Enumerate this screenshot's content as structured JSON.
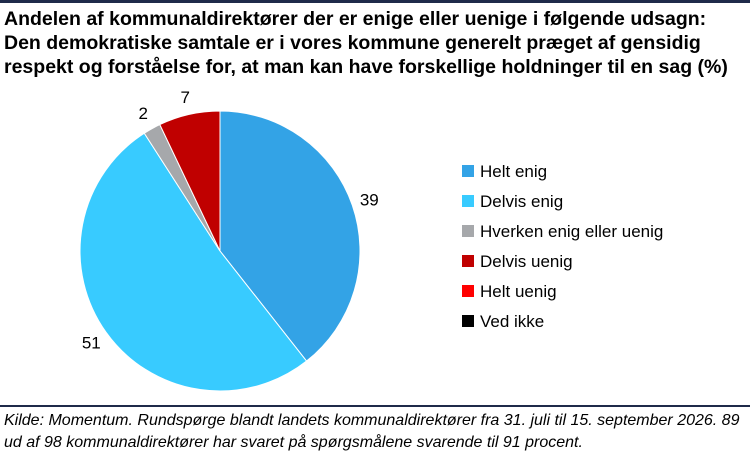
{
  "title": "Andelen af kommunaldirektører der er enige eller uenige i følgende udsagn: Den demokratiske samtale er i vores kommune generelt præget af gensidig respekt og forståelse for, at man kan have forskellige holdninger til en sag (%)",
  "source": "Kilde: Momentum. Rundspørge blandt landets kommunaldirektører fra 31. juli til 15. september 2026. 89 ud af 98 kommunaldirektører har svaret på spørgsmålene svarende til 91 procent.",
  "chart_data": {
    "type": "pie",
    "title": "Andelen af kommunaldirektører der er enige eller uenige i følgende udsagn: Den demokratiske samtale er i vores kommune generelt præget af gensidig respekt og forståelse for, at man kan have forskellige holdninger til en sag (%)",
    "legend_position": "right",
    "slices": [
      {
        "label": "Helt enig",
        "value": 39,
        "color": "#33a3e6",
        "value_label": "39"
      },
      {
        "label": "Delvis enig",
        "value": 51,
        "color": "#38cbff",
        "value_label": "51"
      },
      {
        "label": "Hverken enig eller uenig",
        "value": 2,
        "color": "#a6a8ab",
        "value_label": "2"
      },
      {
        "label": "Delvis uenig",
        "value": 7,
        "color": "#c00000",
        "value_label": "7"
      },
      {
        "label": "Helt uenig",
        "value": 0,
        "color": "#ff0000",
        "value_label": ""
      },
      {
        "label": "Ved ikke",
        "value": 0,
        "color": "#000000",
        "value_label": ""
      }
    ]
  }
}
